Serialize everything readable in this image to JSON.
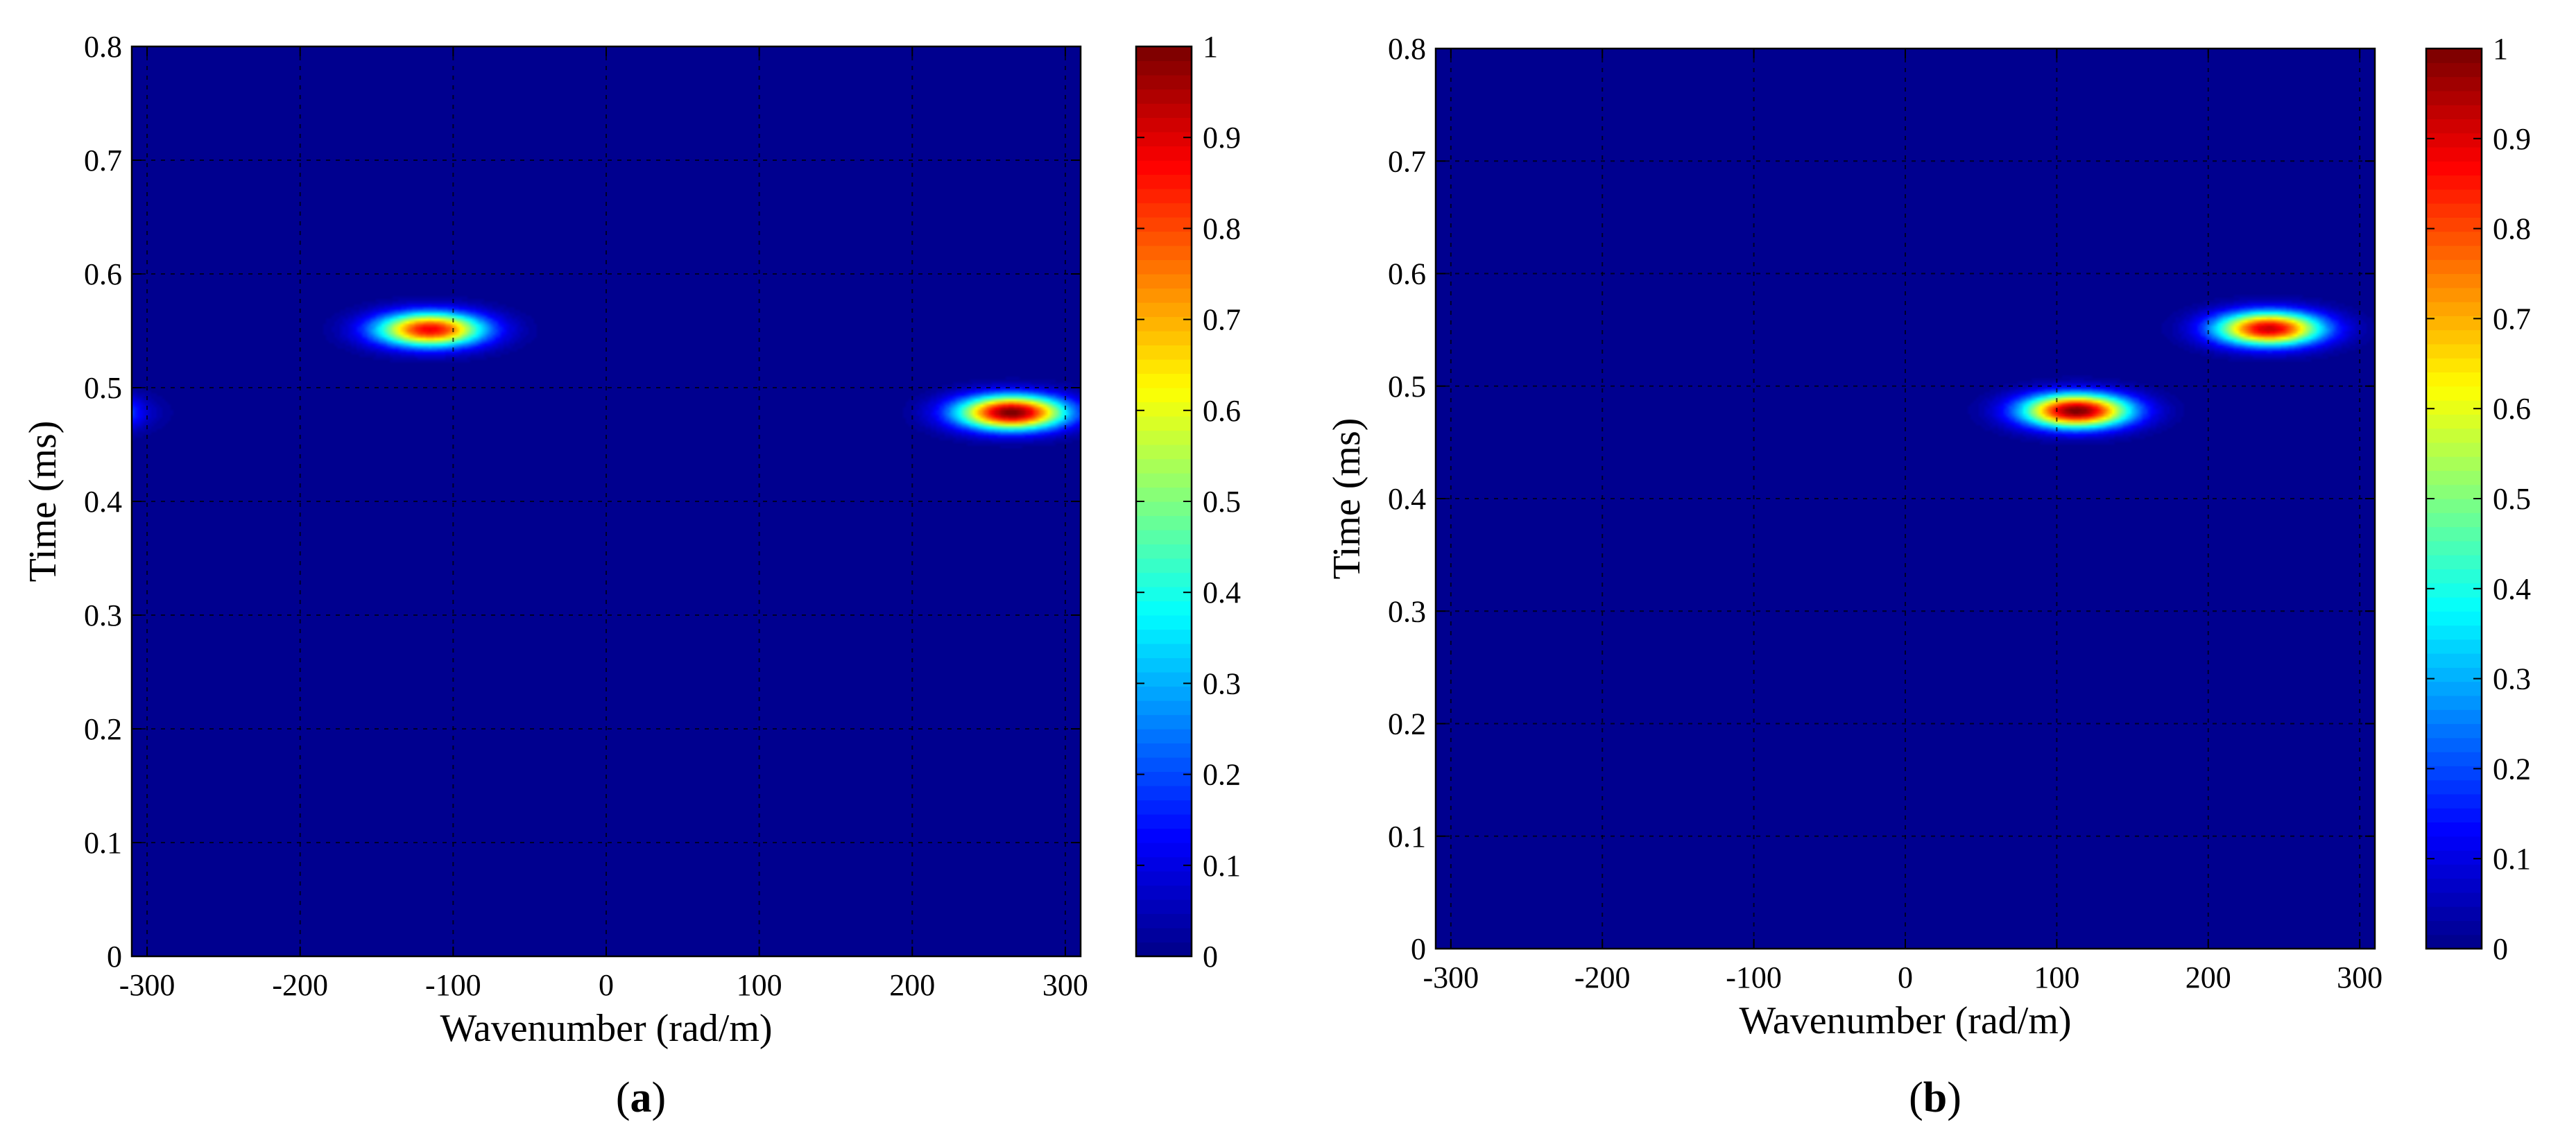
{
  "figure": {
    "panels": [
      {
        "caption_letter": "a"
      },
      {
        "caption_letter": "b"
      }
    ]
  },
  "colorscale": {
    "name": "jet",
    "stops": [
      "#00008f",
      "#0000ff",
      "#00ffff",
      "#ffff00",
      "#ff0000",
      "#800000"
    ],
    "levels": 64
  },
  "chart_data": [
    {
      "type": "heatmap",
      "title": "",
      "xlabel": "Wavenumber (rad/m)",
      "ylabel": "Time (ms)",
      "xlim": [
        -310,
        310
      ],
      "ylim": [
        0,
        0.8
      ],
      "xticks": [
        -300,
        -200,
        -100,
        0,
        100,
        200,
        300
      ],
      "yticks": [
        0,
        0.1,
        0.2,
        0.3,
        0.4,
        0.5,
        0.6,
        0.7,
        0.8
      ],
      "grid": true,
      "colorbar": {
        "range": [
          0,
          1
        ],
        "ticks": [
          0,
          0.1,
          0.2,
          0.3,
          0.4,
          0.5,
          0.6,
          0.7,
          0.8,
          0.9,
          1
        ]
      },
      "peaks": [
        {
          "wavenumber": -115,
          "time": 0.551,
          "amplitude": 0.88,
          "width_wavenumber": 35,
          "width_time": 0.015
        },
        {
          "wavenumber": 265,
          "time": 0.478,
          "amplitude": 1.0,
          "width_wavenumber": 35,
          "width_time": 0.015
        },
        {
          "wavenumber": -355,
          "time": 0.478,
          "amplitude": 1.0,
          "width_wavenumber": 35,
          "width_time": 0.015
        }
      ]
    },
    {
      "type": "heatmap",
      "title": "",
      "xlabel": "Wavenumber (rad/m)",
      "ylabel": "Time (ms)",
      "xlim": [
        -310,
        310
      ],
      "ylim": [
        0,
        0.8
      ],
      "xticks": [
        -300,
        -200,
        -100,
        0,
        100,
        200,
        300
      ],
      "yticks": [
        0,
        0.1,
        0.2,
        0.3,
        0.4,
        0.5,
        0.6,
        0.7,
        0.8
      ],
      "grid": true,
      "colorbar": {
        "range": [
          0,
          1
        ],
        "ticks": [
          0,
          0.1,
          0.2,
          0.3,
          0.4,
          0.5,
          0.6,
          0.7,
          0.8,
          0.9,
          1
        ]
      },
      "peaks": [
        {
          "wavenumber": 113,
          "time": 0.478,
          "amplitude": 1.0,
          "width_wavenumber": 35,
          "width_time": 0.015
        },
        {
          "wavenumber": 240,
          "time": 0.551,
          "amplitude": 0.92,
          "width_wavenumber": 35,
          "width_time": 0.015
        }
      ]
    }
  ]
}
